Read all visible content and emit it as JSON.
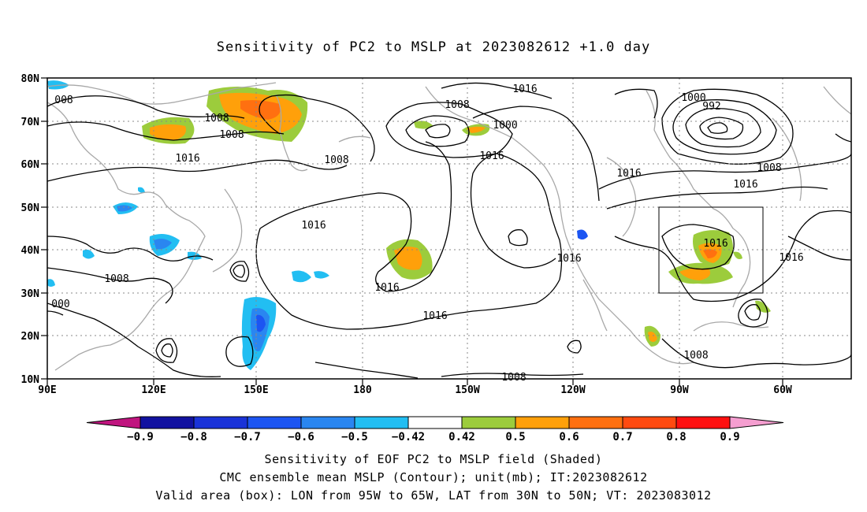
{
  "title": "Sensitivity of PC2 to MSLP at 2023082612 +1.0 day",
  "lat_labels": [
    "80N",
    "70N",
    "60N",
    "50N",
    "40N",
    "30N",
    "20N",
    "10N"
  ],
  "lon_labels": [
    "90E",
    "120E",
    "150E",
    "180",
    "150W",
    "120W",
    "90W",
    "60W"
  ],
  "contour_labels": [
    "008",
    "1008",
    "1008",
    "1016",
    "1008",
    "1016",
    "1008",
    "1000",
    "1016",
    "1016",
    "1000",
    "992",
    "1016",
    "1008",
    "1016",
    "1016",
    "1016",
    "1016",
    "1016",
    "1008",
    "1016",
    "1008",
    "000",
    "1008"
  ],
  "valid_box": {
    "lon": [
      "95W",
      "65W"
    ],
    "lat": [
      "30N",
      "50N"
    ]
  },
  "colorbar": {
    "colors": [
      "#c0157f",
      "#1111a0",
      "#1a33d8",
      "#1c55f2",
      "#2a86f0",
      "#22bef2",
      "#ffffff",
      "#9ccc3c",
      "#ffa00a",
      "#ff7010",
      "#ff4a10",
      "#ff1010",
      "#f59ed0"
    ],
    "labels": [
      "−0.9",
      "−0.8",
      "−0.7",
      "−0.6",
      "−0.5",
      "−0.42",
      "0.42",
      "0.5",
      "0.6",
      "0.7",
      "0.8",
      "0.9"
    ]
  },
  "captions": [
    "Sensitivity of EOF PC2 to MSLP field (Shaded)",
    "CMC ensemble mean MSLP (Contour); unit(mb); IT:2023082612",
    "Valid area (box): LON from 95W to 65W, LAT from 30N to 50N; VT: 2023083012"
  ]
}
